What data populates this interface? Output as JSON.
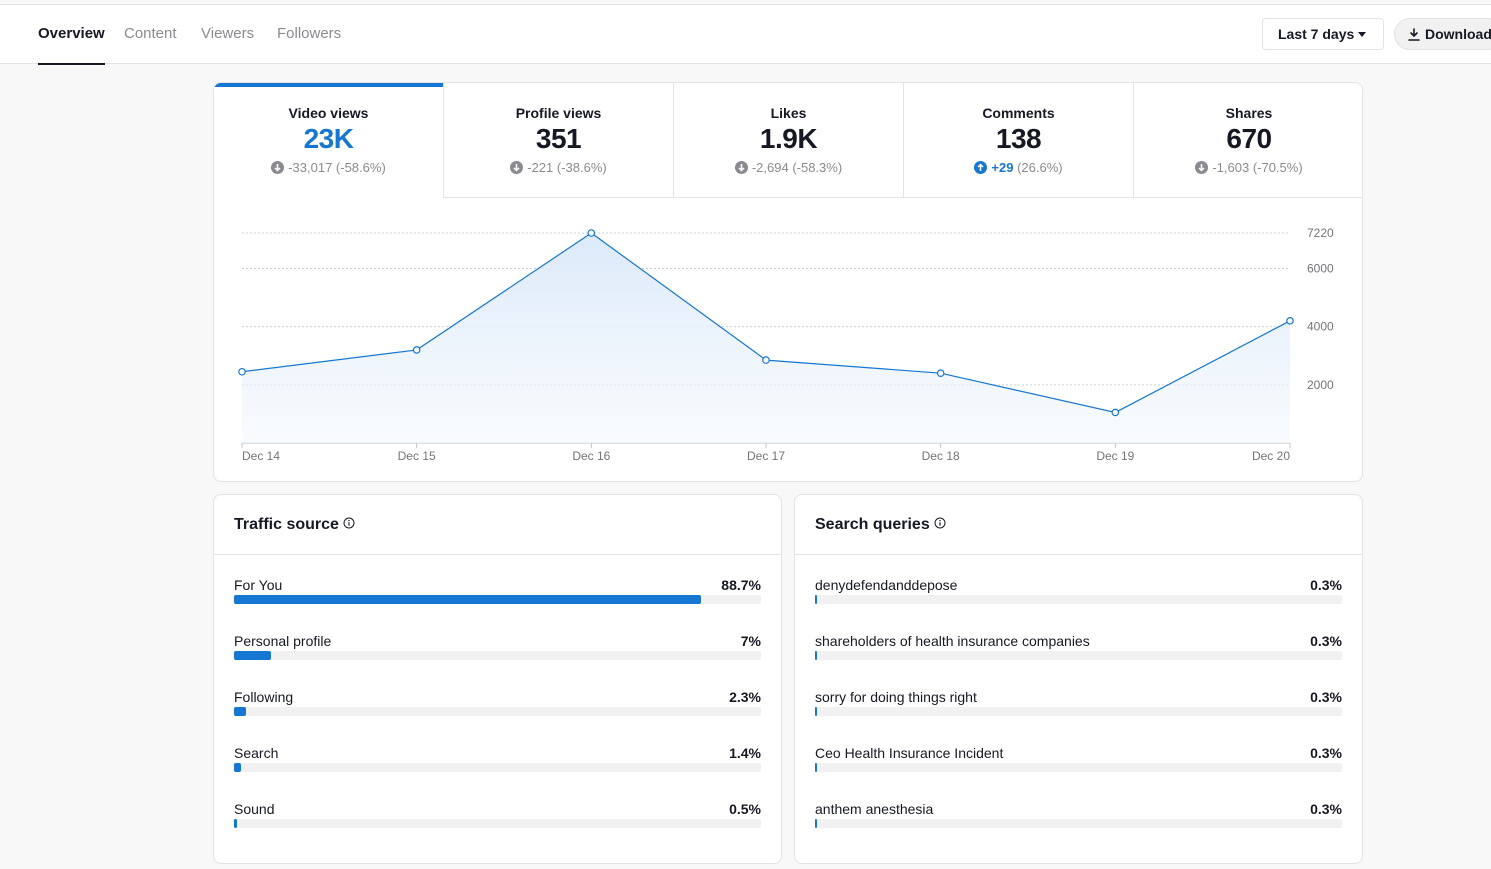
{
  "nav": {
    "tabs": [
      {
        "label": "Overview",
        "active": true
      },
      {
        "label": "Content",
        "active": false
      },
      {
        "label": "Viewers",
        "active": false
      },
      {
        "label": "Followers",
        "active": false
      }
    ],
    "range_label": "Last 7 days",
    "download_label": "Download"
  },
  "metrics": [
    {
      "label": "Video views",
      "value": "23K",
      "delta": "-33,017",
      "pct": "(-58.6%)",
      "trend": "down",
      "active": true
    },
    {
      "label": "Profile views",
      "value": "351",
      "delta": "-221",
      "pct": "(-38.6%)",
      "trend": "down",
      "active": false
    },
    {
      "label": "Likes",
      "value": "1.9K",
      "delta": "-2,694",
      "pct": "(-58.3%)",
      "trend": "down",
      "active": false
    },
    {
      "label": "Comments",
      "value": "138",
      "delta": "+29",
      "pct": "(26.6%)",
      "trend": "up",
      "active": false
    },
    {
      "label": "Shares",
      "value": "670",
      "delta": "-1,603",
      "pct": "(-70.5%)",
      "trend": "down",
      "active": false
    }
  ],
  "chart_data": {
    "type": "area",
    "x": [
      "Dec 14",
      "Dec 15",
      "Dec 16",
      "Dec 17",
      "Dec 18",
      "Dec 19",
      "Dec 20"
    ],
    "values": [
      2450,
      3200,
      7220,
      2850,
      2400,
      1050,
      4200
    ],
    "y_ticks": [
      2000,
      4000,
      6000,
      7220
    ],
    "ylim": [
      0,
      7220
    ],
    "grid": true,
    "colors": {
      "line": "#1677d2",
      "fill": "#e3eefb"
    }
  },
  "traffic_source": {
    "title": "Traffic source",
    "rows": [
      {
        "label": "For You",
        "pct": "88.7%",
        "value": 88.7
      },
      {
        "label": "Personal profile",
        "pct": "7%",
        "value": 7
      },
      {
        "label": "Following",
        "pct": "2.3%",
        "value": 2.3
      },
      {
        "label": "Search",
        "pct": "1.4%",
        "value": 1.4
      },
      {
        "label": "Sound",
        "pct": "0.5%",
        "value": 0.5
      }
    ]
  },
  "search_queries": {
    "title": "Search queries",
    "rows": [
      {
        "label": "denydefendanddepose",
        "pct": "0.3%",
        "value": 0.3
      },
      {
        "label": "shareholders of health insurance companies",
        "pct": "0.3%",
        "value": 0.3
      },
      {
        "label": "sorry for doing things right",
        "pct": "0.3%",
        "value": 0.3
      },
      {
        "label": "Ceo Health Insurance Incident",
        "pct": "0.3%",
        "value": 0.3
      },
      {
        "label": "anthem anesthesia",
        "pct": "0.3%",
        "value": 0.3
      }
    ]
  },
  "accent_color": "#1677d2"
}
